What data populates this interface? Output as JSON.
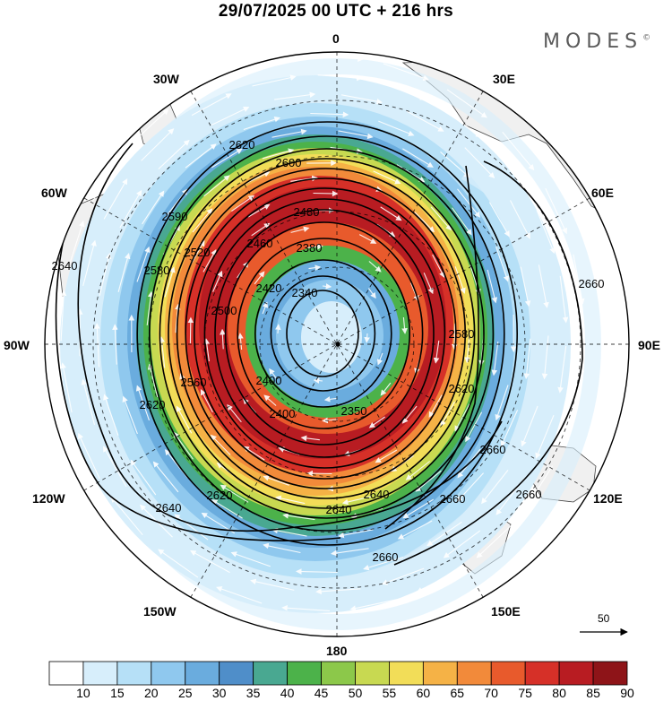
{
  "title": "29/07/2025  00 UTC  + 216 hrs",
  "brand": {
    "text": "MODES",
    "mark": "©"
  },
  "longitude_labels": {
    "lon_0": "0",
    "lon_30e": "30E",
    "lon_60e": "60E",
    "lon_90e": "90E",
    "lon_120e": "120E",
    "lon_150e": "150E",
    "lon_180": "180",
    "lon_150w": "150W",
    "lon_120w": "120W",
    "lon_90w": "90W",
    "lon_60w": "60W",
    "lon_30w": "30W"
  },
  "contour_labels": [
    "2340",
    "2380",
    "2420",
    "2460",
    "2480",
    "2500",
    "2520",
    "2540",
    "2560",
    "2580",
    "2590",
    "2600",
    "2620",
    "2640",
    "2660",
    "2350",
    "2400"
  ],
  "vector_reference": {
    "value": "50"
  },
  "colorbar": {
    "levels": [
      "10",
      "15",
      "20",
      "25",
      "30",
      "35",
      "40",
      "45",
      "50",
      "55",
      "60",
      "65",
      "70",
      "75",
      "80",
      "85",
      "90"
    ],
    "colors": [
      "#ffffff",
      "#d7eefb",
      "#b6e0f7",
      "#8fc8ee",
      "#6aacde",
      "#4f8ec9",
      "#49a891",
      "#4cb24a",
      "#8cc84a",
      "#c8d951",
      "#f2dd58",
      "#f5b246",
      "#f28a3a",
      "#e85a2c",
      "#d63028",
      "#b81c22",
      "#8e1418"
    ]
  }
}
